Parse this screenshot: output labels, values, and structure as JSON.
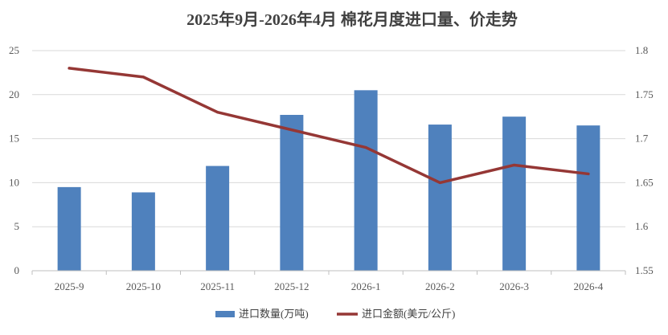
{
  "chart_data": {
    "type": "bar",
    "title": "2025年9月-2026年4月 棉花月度进口量、价走势",
    "categories": [
      "2025-9",
      "2025-10",
      "2025-11",
      "2025-12",
      "2026-1",
      "2026-2",
      "2026-3",
      "2026-4"
    ],
    "y_left": {
      "min": 0,
      "max": 25,
      "ticks": [
        "0",
        "5",
        "10",
        "15",
        "20",
        "25"
      ]
    },
    "y_right": {
      "min": 1.55,
      "max": 1.8,
      "ticks": [
        "1.55",
        "1.6",
        "1.65",
        "1.7",
        "1.75",
        "1.8"
      ]
    },
    "grid": true,
    "legend_position": "bottom",
    "series": [
      {
        "name": "进口数量(万吨)",
        "type": "bar",
        "axis": "left",
        "color": "#4f81bd",
        "values": [
          9.5,
          8.9,
          11.9,
          17.7,
          20.5,
          16.6,
          17.5,
          16.5
        ]
      },
      {
        "name": "进口金额(美元/公斤)",
        "type": "line",
        "axis": "right",
        "color": "#953735",
        "values": [
          1.78,
          1.77,
          1.73,
          1.71,
          1.69,
          1.65,
          1.67,
          1.66
        ]
      }
    ]
  }
}
